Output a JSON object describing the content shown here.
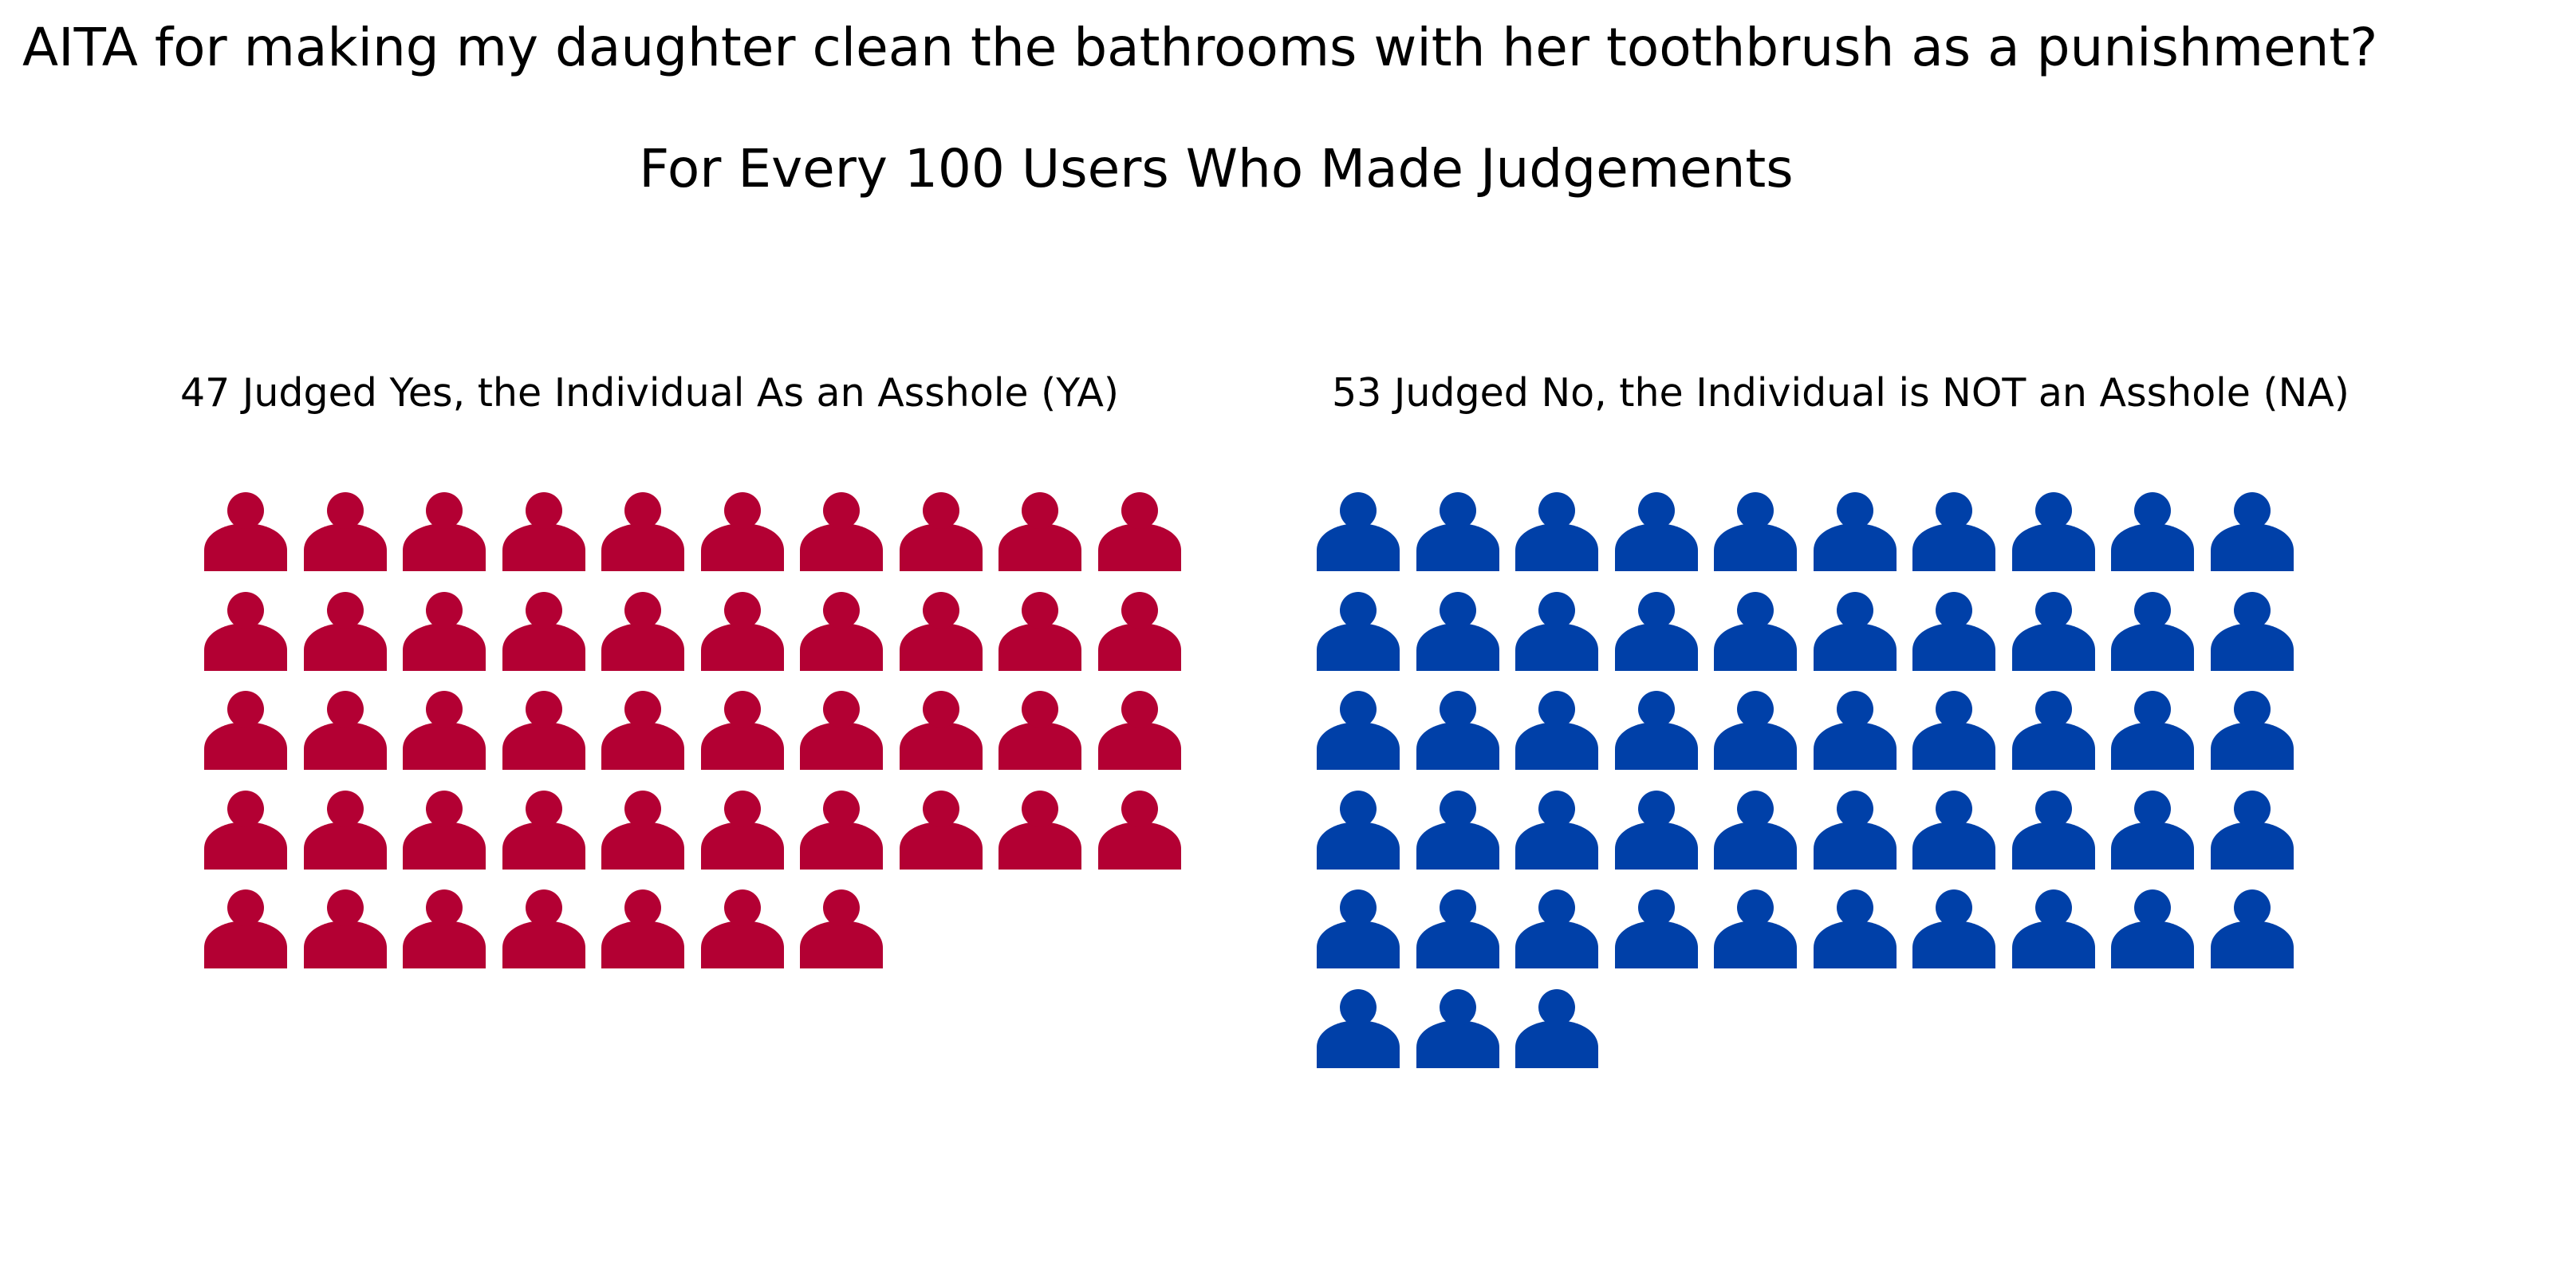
{
  "title": "AITA for making my daughter clean the bathrooms with her toothbrush as a punishment?",
  "subtitle": "For Every 100 Users Who Made Judgements",
  "chart_data": {
    "type": "pictogram",
    "icons_per_row": 10,
    "icon": "person-icon",
    "series": [
      {
        "label": "47 Judged Yes, the Individual As an Asshole (YA)",
        "value": 47,
        "color": "#b30033"
      },
      {
        "label": "53 Judged No, the Individual is NOT an Asshole (NA)",
        "value": 53,
        "color": "#0040a8"
      }
    ]
  }
}
